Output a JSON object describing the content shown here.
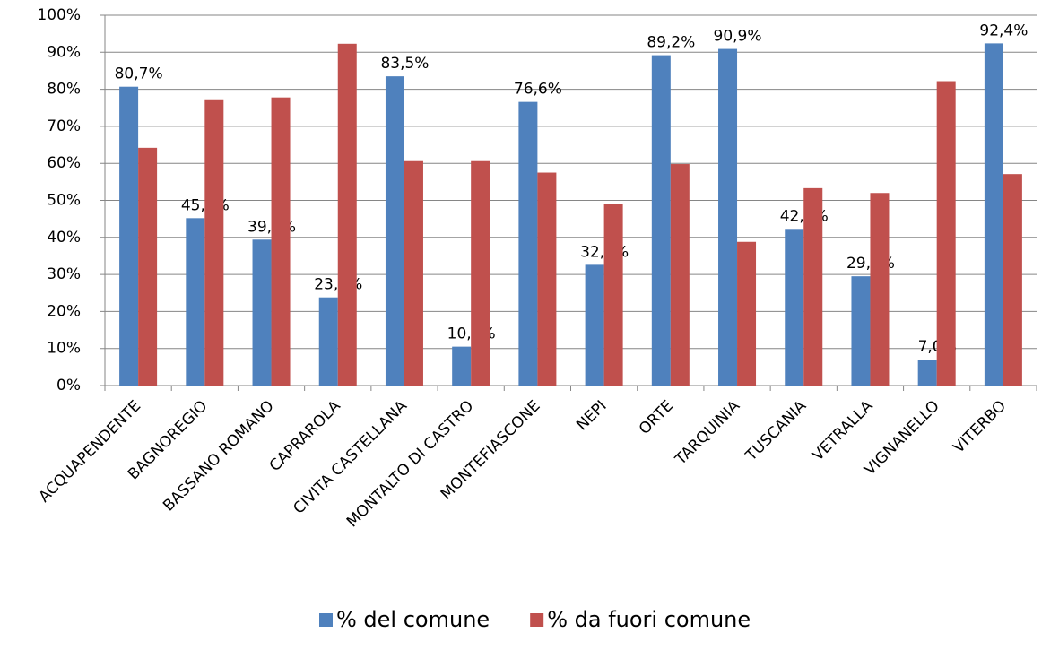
{
  "chart_data": {
    "type": "bar",
    "categories": [
      "ACQUAPENDENTE",
      "BAGNOREGIO",
      "BASSANO ROMANO",
      "CAPRAROLA",
      "CIVITA CASTELLANA",
      "MONTALTO DI CASTRO",
      "MONTEFIASCONE",
      "NEPI",
      "ORTE",
      "TARQUINIA",
      "TUSCANIA",
      "VETRALLA",
      "VIGNANELLO",
      "VITERBO"
    ],
    "series": [
      {
        "name": "% del comune",
        "color": "#4f81bd",
        "values": [
          80.7,
          45.2,
          39.4,
          23.8,
          83.5,
          10.5,
          76.6,
          32.6,
          89.2,
          90.9,
          42.3,
          29.5,
          7.0,
          92.4
        ],
        "value_labels": [
          "80,7%",
          "45,2%",
          "39,4%",
          "23,8%",
          "83,5%",
          "10,5%",
          "76,6%",
          "32,6%",
          "89,2%",
          "90,9%",
          "42,3%",
          "29,5%",
          "7,0%",
          "92,4%"
        ]
      },
      {
        "name": "% da fuori comune",
        "color": "#c0504d",
        "values": [
          64.2,
          77.3,
          77.8,
          92.3,
          60.6,
          60.6,
          57.5,
          49.1,
          59.8,
          38.8,
          53.3,
          52.0,
          82.2,
          57.1
        ]
      }
    ],
    "ylim": [
      0,
      100
    ],
    "yticks": [
      {
        "value": 0,
        "label": "0%"
      },
      {
        "value": 10,
        "label": "10%"
      },
      {
        "value": 20,
        "label": "20%"
      },
      {
        "value": 30,
        "label": "30%"
      },
      {
        "value": 40,
        "label": "40%"
      },
      {
        "value": 50,
        "label": "50%"
      },
      {
        "value": 60,
        "label": "60%"
      },
      {
        "value": 70,
        "label": "70%"
      },
      {
        "value": 80,
        "label": "80%"
      },
      {
        "value": 90,
        "label": "90%"
      },
      {
        "value": 100,
        "label": "100%"
      }
    ],
    "grid": true,
    "legend": "bottom"
  }
}
